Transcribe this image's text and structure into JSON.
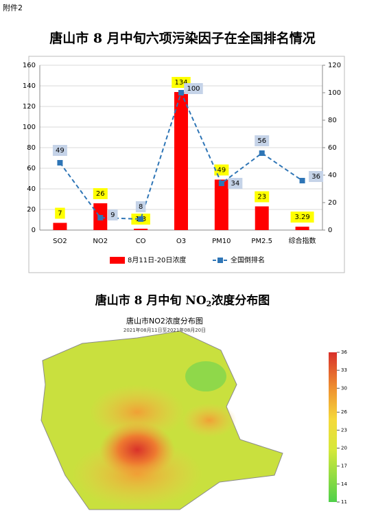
{
  "header": {
    "attachment": "附件2"
  },
  "chart_data": {
    "type": "bar",
    "title": "唐山市 8 月中旬六项污染因子在全国排名情况",
    "categories": [
      "SO2",
      "NO2",
      "CO",
      "O3",
      "PM10",
      "PM2.5",
      "综合指数"
    ],
    "series": [
      {
        "name": "8月11日-20日浓度",
        "type": "bar",
        "color": "#ff0000",
        "values": [
          7,
          26,
          1.3,
          134,
          49,
          23,
          3.29
        ]
      },
      {
        "name": "全国倒排名",
        "type": "line",
        "axis": "y2",
        "color": "#2e75b6",
        "values": [
          49,
          9,
          8,
          100,
          34,
          56,
          36
        ]
      }
    ],
    "ylim": [
      0,
      160
    ],
    "yticks": [
      0,
      20,
      40,
      60,
      80,
      100,
      120,
      140,
      160
    ],
    "y2lim": [
      0,
      120
    ],
    "y2ticks": [
      0,
      20,
      40,
      60,
      80,
      100,
      120
    ],
    "grid": true,
    "legend": "bottom"
  },
  "map": {
    "title_parts": [
      "唐山市 8 月中旬 NO",
      "2",
      "浓度分布图"
    ],
    "inner_title": "唐山市NO2浓度分布图",
    "inner_subtitle": "2021年08月11日至2021年08月20日",
    "colorbar": {
      "lim": [
        11,
        36
      ],
      "ticks": [
        11,
        14,
        17,
        20,
        23,
        26,
        30,
        33,
        36
      ]
    }
  }
}
